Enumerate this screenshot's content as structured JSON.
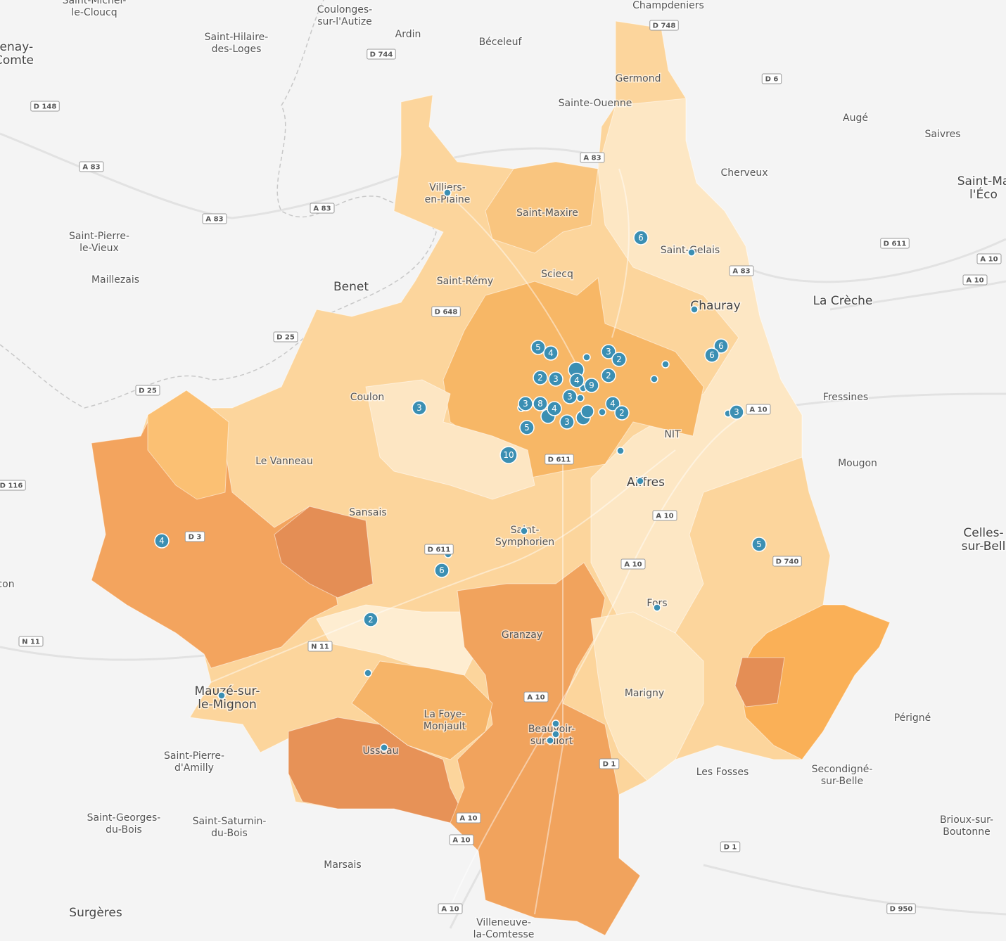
{
  "places": [
    {
      "lines": [
        "Saint-Michel-",
        "le-Cloucq"
      ]
    },
    {
      "lines": [
        "Coulonges-",
        "sur-l'Autize"
      ]
    },
    {
      "lines": [
        "Ardin"
      ]
    },
    {
      "lines": [
        "Béceleuf"
      ]
    },
    {
      "lines": [
        "Champdeniers"
      ]
    },
    {
      "lines": [
        "Saint-Hilaire-",
        "des-Loges"
      ]
    },
    {
      "lines": [
        "tenay-",
        "Comte"
      ]
    },
    {
      "lines": [
        "Germond"
      ]
    },
    {
      "lines": [
        "Sainte-Ouenne"
      ]
    },
    {
      "lines": [
        "Augé"
      ]
    },
    {
      "lines": [
        "Saivres"
      ]
    },
    {
      "lines": [
        "Cherveux"
      ]
    },
    {
      "lines": [
        "Saint-Ma",
        "l'Éco"
      ]
    },
    {
      "lines": [
        "Villiers-",
        "en-Plaine"
      ]
    },
    {
      "lines": [
        "Saint-Maxire"
      ]
    },
    {
      "lines": [
        "Saint-Pierre-",
        "le-Vieux"
      ]
    },
    {
      "lines": [
        "Saint-Gelais"
      ]
    },
    {
      "lines": [
        "Maillezais"
      ]
    },
    {
      "lines": [
        "Benet"
      ]
    },
    {
      "lines": [
        "Sciecq"
      ]
    },
    {
      "lines": [
        "Saint-Rémy"
      ]
    },
    {
      "lines": [
        "Chauray"
      ]
    },
    {
      "lines": [
        "La Crèche"
      ]
    },
    {
      "lines": [
        "Coulon"
      ]
    },
    {
      "lines": [
        "Fressines"
      ]
    },
    {
      "lines": [
        "NIT"
      ]
    },
    {
      "lines": [
        "Le Vanneau"
      ]
    },
    {
      "lines": [
        "Mougon"
      ]
    },
    {
      "lines": [
        "Aiffres"
      ]
    },
    {
      "lines": [
        "Sansais"
      ]
    },
    {
      "lines": [
        "Saint-",
        "Symphorien"
      ]
    },
    {
      "lines": [
        "Celles-",
        "sur-Bell"
      ]
    },
    {
      "lines": [
        "con"
      ]
    },
    {
      "lines": [
        "Fors"
      ]
    },
    {
      "lines": [
        "Granzay"
      ]
    },
    {
      "lines": [
        "Marigny"
      ]
    },
    {
      "lines": [
        "Mauzé-sur-",
        "le-Mignon"
      ]
    },
    {
      "lines": [
        "Périgné"
      ]
    },
    {
      "lines": [
        "La Foye-",
        "Monjault"
      ]
    },
    {
      "lines": [
        "Beauvoir-",
        "sur-Niort"
      ]
    },
    {
      "lines": [
        "Usseau"
      ]
    },
    {
      "lines": [
        "Saint-Pierre-",
        "d'Amilly"
      ]
    },
    {
      "lines": [
        "Les Fosses"
      ]
    },
    {
      "lines": [
        "Secondigné-",
        "sur-Belle"
      ]
    },
    {
      "lines": [
        "Saint-Georges-",
        "du-Bois"
      ]
    },
    {
      "lines": [
        "Saint-Saturnin-",
        "du-Bois"
      ]
    },
    {
      "lines": [
        "Brioux-sur-",
        "Boutonne"
      ]
    },
    {
      "lines": [
        "Marsais"
      ]
    },
    {
      "lines": [
        "Surgères"
      ]
    },
    {
      "lines": [
        "Villeneuve-",
        "la-Comtesse"
      ]
    }
  ],
  "roads": [
    "D 748",
    "D 744",
    "D 6",
    "D 148",
    "A 83",
    "A 83",
    "A 83",
    "A 83",
    "D 611",
    "A 10",
    "A 10",
    "A 83",
    "D 648",
    "D 25",
    "D 25",
    "A 10",
    "D 611",
    "D 116",
    "A 10",
    "D 3",
    "D 611",
    "A 10",
    "D 740",
    "N 11",
    "N 11",
    "A 10",
    "D 1",
    "A 10",
    "A 10",
    "D 1",
    "D 950",
    "A 10"
  ],
  "clusters": [
    6,
    5,
    4,
    3,
    2,
    6,
    6,
    2,
    3,
    4,
    2,
    9,
    3,
    3,
    8,
    4,
    4,
    2,
    3,
    5,
    3,
    3,
    10,
    4,
    5,
    6,
    2
  ]
}
